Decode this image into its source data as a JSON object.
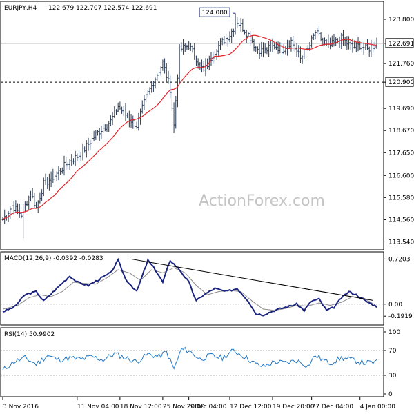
{
  "chart_data": [
    {
      "type": "candlestick",
      "symbol_label": "EURJPY,H4",
      "ohlc_label": "122.679 122.707 122.574 122.691",
      "yticks": [
        "123.800",
        "122.691",
        "121.760",
        "120.900",
        "119.690",
        "118.670",
        "117.650",
        "116.600",
        "115.580",
        "114.560",
        "113.540"
      ],
      "ytick_values": [
        123.8,
        122.691,
        121.76,
        120.9,
        119.69,
        118.67,
        117.65,
        116.6,
        115.58,
        114.56,
        113.54
      ],
      "ylim": [
        113.3,
        124.5
      ],
      "annotations": [
        {
          "text": "124.080",
          "value": 124.08
        },
        {
          "text": "122.691",
          "value": 122.691
        },
        {
          "text": "120.900",
          "value": 120.9
        }
      ],
      "support_level": 120.9,
      "current_level": 122.691,
      "high_bar_index": 125,
      "moving_average": "red",
      "x_ticks": [
        "3 Nov 2016",
        "11 Nov 04:00",
        "18 Nov 12:00",
        "25 Nov 20:00",
        "5 Dec 04:00",
        "12 Dec 12:00",
        "19 Dec 20:00",
        "27 Dec 04:00",
        "4 Jan 00:00"
      ],
      "x_tick_bars": [
        0,
        40,
        63,
        86,
        100,
        122,
        145,
        166,
        192
      ],
      "num_bars": 202,
      "close_anchors": [
        [
          0,
          114.56
        ],
        [
          5,
          115.2
        ],
        [
          10,
          114.8
        ],
        [
          15,
          115.8
        ],
        [
          18,
          115.1
        ],
        [
          22,
          116.2
        ],
        [
          28,
          116.6
        ],
        [
          35,
          117.2
        ],
        [
          42,
          117.6
        ],
        [
          50,
          118.5
        ],
        [
          58,
          119.1
        ],
        [
          62,
          119.8
        ],
        [
          66,
          119.4
        ],
        [
          72,
          118.9
        ],
        [
          77,
          120.2
        ],
        [
          82,
          121.1
        ],
        [
          86,
          121.8
        ],
        [
          90,
          120.6
        ],
        [
          92,
          118.9
        ],
        [
          95,
          122.4
        ],
        [
          100,
          122.6
        ],
        [
          108,
          121.4
        ],
        [
          115,
          122.5
        ],
        [
          122,
          123.1
        ],
        [
          126,
          123.7
        ],
        [
          132,
          123.1
        ],
        [
          136,
          122.5
        ],
        [
          140,
          122.3
        ],
        [
          146,
          122.6
        ],
        [
          150,
          122.4
        ],
        [
          155,
          122.8
        ],
        [
          160,
          122.0
        ],
        [
          164,
          122.4
        ],
        [
          168,
          123.2
        ],
        [
          172,
          122.8
        ],
        [
          176,
          122.6
        ],
        [
          182,
          122.9
        ],
        [
          188,
          122.5
        ],
        [
          192,
          122.6
        ],
        [
          196,
          122.4
        ],
        [
          201,
          122.69
        ]
      ],
      "color": "#2a3b56"
    },
    {
      "type": "line",
      "title": "MACD(12,26,9) -0.0392 -0.0283",
      "yticks": [
        "0.7203",
        "0.00",
        "-0.1919"
      ],
      "ytick_values": [
        0.7203,
        0.0,
        -0.1919
      ],
      "ylim": [
        -0.3,
        0.78
      ],
      "trendline": [
        [
          69,
          0.72
        ],
        [
          199,
          0.06
        ]
      ],
      "macd_anchors": [
        [
          0,
          -0.12
        ],
        [
          6,
          -0.05
        ],
        [
          12,
          0.15
        ],
        [
          18,
          0.2
        ],
        [
          22,
          0.05
        ],
        [
          30,
          0.28
        ],
        [
          36,
          0.45
        ],
        [
          40,
          0.35
        ],
        [
          46,
          0.3
        ],
        [
          52,
          0.4
        ],
        [
          58,
          0.5
        ],
        [
          62,
          0.7
        ],
        [
          66,
          0.4
        ],
        [
          72,
          0.2
        ],
        [
          78,
          0.7
        ],
        [
          82,
          0.55
        ],
        [
          86,
          0.35
        ],
        [
          90,
          0.7
        ],
        [
          95,
          0.55
        ],
        [
          100,
          0.35
        ],
        [
          104,
          0.05
        ],
        [
          108,
          0.15
        ],
        [
          114,
          0.25
        ],
        [
          120,
          0.2
        ],
        [
          126,
          0.25
        ],
        [
          132,
          0.05
        ],
        [
          136,
          -0.15
        ],
        [
          140,
          -0.17
        ],
        [
          146,
          -0.1
        ],
        [
          152,
          -0.05
        ],
        [
          158,
          0.0
        ],
        [
          162,
          -0.1
        ],
        [
          166,
          0.05
        ],
        [
          170,
          0.08
        ],
        [
          174,
          -0.1
        ],
        [
          178,
          -0.05
        ],
        [
          182,
          0.1
        ],
        [
          186,
          0.2
        ],
        [
          190,
          0.15
        ],
        [
          195,
          0.05
        ],
        [
          201,
          -0.04
        ]
      ],
      "signal_anchors": [
        [
          0,
          -0.08
        ],
        [
          8,
          -0.02
        ],
        [
          14,
          0.1
        ],
        [
          20,
          0.15
        ],
        [
          26,
          0.12
        ],
        [
          32,
          0.2
        ],
        [
          38,
          0.35
        ],
        [
          44,
          0.33
        ],
        [
          50,
          0.32
        ],
        [
          56,
          0.42
        ],
        [
          62,
          0.55
        ],
        [
          68,
          0.5
        ],
        [
          74,
          0.38
        ],
        [
          80,
          0.55
        ],
        [
          86,
          0.5
        ],
        [
          92,
          0.58
        ],
        [
          98,
          0.5
        ],
        [
          104,
          0.3
        ],
        [
          110,
          0.15
        ],
        [
          116,
          0.2
        ],
        [
          122,
          0.22
        ],
        [
          128,
          0.2
        ],
        [
          134,
          0.05
        ],
        [
          140,
          -0.08
        ],
        [
          146,
          -0.1
        ],
        [
          152,
          -0.07
        ],
        [
          158,
          -0.02
        ],
        [
          164,
          -0.03
        ],
        [
          170,
          0.02
        ],
        [
          176,
          -0.02
        ],
        [
          182,
          0.03
        ],
        [
          188,
          0.12
        ],
        [
          194,
          0.1
        ],
        [
          201,
          -0.03
        ]
      ],
      "macd_color": "#1a237e",
      "signal_color": "#8b8b8b"
    },
    {
      "type": "line",
      "title": "RSI(14) 50.9902",
      "yticks": [
        "100",
        "70",
        "30",
        "0"
      ],
      "ytick_values": [
        100,
        70,
        30,
        0
      ],
      "ylim": [
        0,
        100
      ],
      "reference_levels": [
        70,
        30
      ],
      "rsi_anchors": [
        [
          0,
          38
        ],
        [
          6,
          52
        ],
        [
          12,
          58
        ],
        [
          18,
          48
        ],
        [
          24,
          62
        ],
        [
          30,
          55
        ],
        [
          36,
          58
        ],
        [
          42,
          56
        ],
        [
          48,
          60
        ],
        [
          54,
          55
        ],
        [
          60,
          65
        ],
        [
          66,
          58
        ],
        [
          72,
          52
        ],
        [
          78,
          64
        ],
        [
          84,
          60
        ],
        [
          88,
          68
        ],
        [
          92,
          40
        ],
        [
          96,
          72
        ],
        [
          100,
          70
        ],
        [
          106,
          56
        ],
        [
          112,
          62
        ],
        [
          118,
          58
        ],
        [
          124,
          70
        ],
        [
          130,
          60
        ],
        [
          136,
          48
        ],
        [
          140,
          44
        ],
        [
          146,
          52
        ],
        [
          152,
          50
        ],
        [
          158,
          54
        ],
        [
          164,
          45
        ],
        [
          168,
          62
        ],
        [
          172,
          55
        ],
        [
          176,
          50
        ],
        [
          182,
          58
        ],
        [
          188,
          55
        ],
        [
          194,
          50
        ],
        [
          201,
          51
        ]
      ],
      "color": "#1f77c4"
    }
  ],
  "watermark": "ActionForex.com"
}
